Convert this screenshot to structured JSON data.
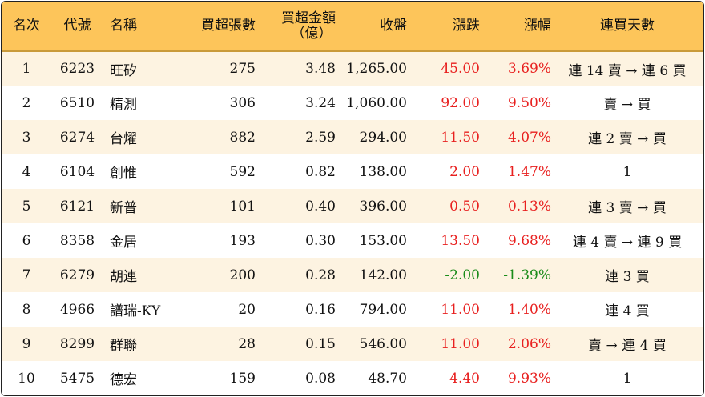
{
  "colors": {
    "header_bg": "#fdc55a",
    "row_alt_bg": "#fdf3e1",
    "up": "#e8201f",
    "down": "#1a8c1a"
  },
  "header": {
    "rank": "名次",
    "code": "代號",
    "name": "名稱",
    "net_buy_lots": "買超張數",
    "net_buy_amount_line1": "買超金額",
    "net_buy_amount_line2": "（億）",
    "close": "收盤",
    "change": "漲跌",
    "change_pct": "漲幅",
    "consecutive": "連買天數"
  },
  "rows": [
    {
      "rank": "1",
      "code": "6223",
      "name": "旺矽",
      "lots": "275",
      "amount": "3.48",
      "close": "1,265.00",
      "change": "45.00",
      "pct": "3.69%",
      "trend": "up",
      "consecutive": "連 14 賣 → 連 6 買"
    },
    {
      "rank": "2",
      "code": "6510",
      "name": "精測",
      "lots": "306",
      "amount": "3.24",
      "close": "1,060.00",
      "change": "92.00",
      "pct": "9.50%",
      "trend": "up",
      "consecutive": "賣 → 買"
    },
    {
      "rank": "3",
      "code": "6274",
      "name": "台燿",
      "lots": "882",
      "amount": "2.59",
      "close": "294.00",
      "change": "11.50",
      "pct": "4.07%",
      "trend": "up",
      "consecutive": "連 2 賣 → 買"
    },
    {
      "rank": "4",
      "code": "6104",
      "name": "創惟",
      "lots": "592",
      "amount": "0.82",
      "close": "138.00",
      "change": "2.00",
      "pct": "1.47%",
      "trend": "up",
      "consecutive": "1"
    },
    {
      "rank": "5",
      "code": "6121",
      "name": "新普",
      "lots": "101",
      "amount": "0.40",
      "close": "396.00",
      "change": "0.50",
      "pct": "0.13%",
      "trend": "up",
      "consecutive": "連 3 賣 → 買"
    },
    {
      "rank": "6",
      "code": "8358",
      "name": "金居",
      "lots": "193",
      "amount": "0.30",
      "close": "153.00",
      "change": "13.50",
      "pct": "9.68%",
      "trend": "up",
      "consecutive": "連 4 賣 → 連 9 買"
    },
    {
      "rank": "7",
      "code": "6279",
      "name": "胡連",
      "lots": "200",
      "amount": "0.28",
      "close": "142.00",
      "change": "-2.00",
      "pct": "-1.39%",
      "trend": "down",
      "consecutive": "連 3 買"
    },
    {
      "rank": "8",
      "code": "4966",
      "name": "譜瑞-KY",
      "lots": "20",
      "amount": "0.16",
      "close": "794.00",
      "change": "11.00",
      "pct": "1.40%",
      "trend": "up",
      "consecutive": "連 4 買"
    },
    {
      "rank": "9",
      "code": "8299",
      "name": "群聯",
      "lots": "28",
      "amount": "0.15",
      "close": "546.00",
      "change": "11.00",
      "pct": "2.06%",
      "trend": "up",
      "consecutive": "賣 → 連 4 買"
    },
    {
      "rank": "10",
      "code": "5475",
      "name": "德宏",
      "lots": "159",
      "amount": "0.08",
      "close": "48.70",
      "change": "4.40",
      "pct": "9.93%",
      "trend": "up",
      "consecutive": "1"
    }
  ]
}
